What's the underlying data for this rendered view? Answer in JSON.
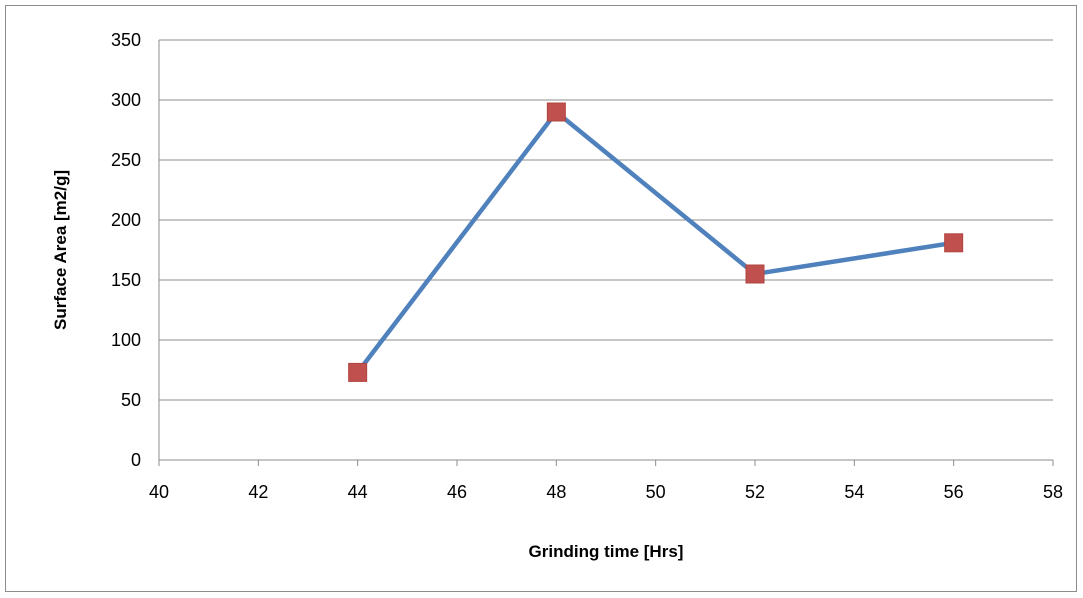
{
  "chart_data": {
    "type": "line",
    "title": "",
    "xlabel": "Grinding time [Hrs]",
    "ylabel": "Surface Area [m2/g]",
    "xlim": [
      40,
      58
    ],
    "ylim": [
      0,
      350
    ],
    "xticks": [
      40,
      42,
      44,
      46,
      48,
      50,
      52,
      54,
      56,
      58
    ],
    "yticks": [
      0,
      50,
      100,
      150,
      200,
      250,
      300,
      350
    ],
    "grid": "horizontal",
    "legend": "none",
    "series": [
      {
        "x": [
          44,
          48,
          52,
          56
        ],
        "y": [
          73,
          290,
          155,
          181
        ],
        "line_color": "#4f81bd",
        "marker_color": "#c0504d",
        "marker": "square"
      }
    ]
  }
}
